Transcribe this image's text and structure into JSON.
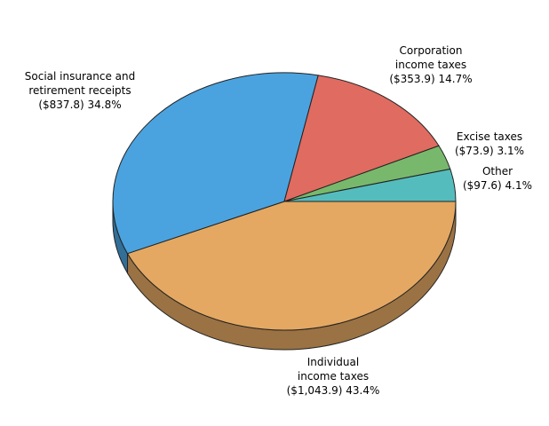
{
  "chart_data": {
    "type": "pie3d",
    "categories": [
      "Individual income taxes",
      "Social insurance and retirement receipts",
      "Corporation income taxes",
      "Excise taxes",
      "Other"
    ],
    "values": [
      1043.9,
      837.8,
      353.9,
      73.9,
      97.6
    ],
    "value_labels": [
      "($1,043.9) 43.4%",
      "($837.8) 34.8%",
      "($353.9) 14.7%",
      "($73.9) 3.1%",
      "($97.6) 4.1%"
    ],
    "colors": [
      "#e4a862",
      "#4aa3df",
      "#e06b60",
      "#78b86c",
      "#55bcbe"
    ]
  }
}
